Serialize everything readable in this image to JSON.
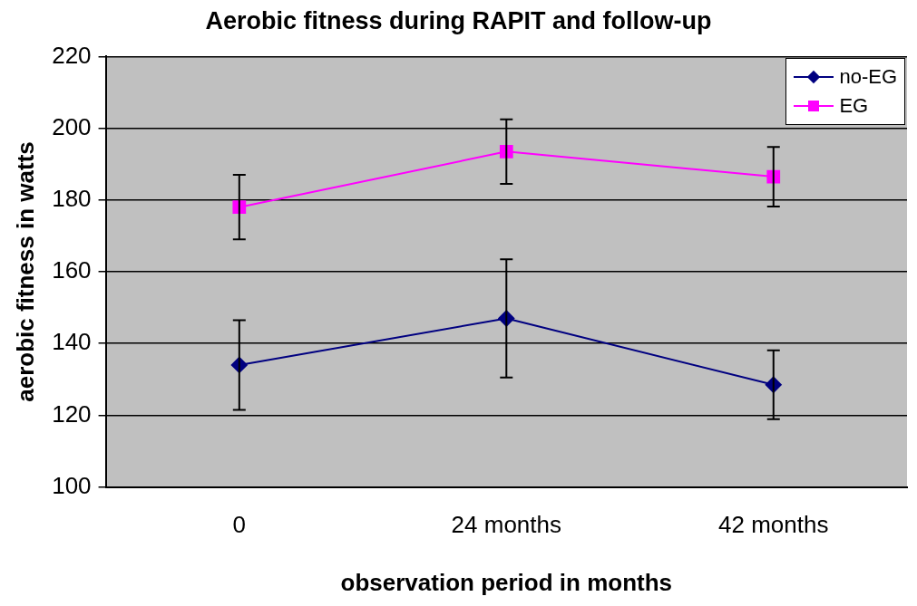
{
  "chart_data": {
    "type": "line",
    "title": "Aerobic fitness during RAPIT and follow-up",
    "xlabel": "observation period in months",
    "ylabel": "aerobic fitness in watts",
    "categories": [
      "0",
      "24 months",
      "42 months"
    ],
    "series": [
      {
        "name": "no-EG",
        "color": "#000080",
        "marker": "diamond",
        "values": [
          134,
          147,
          128.5
        ],
        "errors": [
          12.5,
          16.5,
          9.6
        ]
      },
      {
        "name": "EG",
        "color": "#ff00ff",
        "marker": "square",
        "values": [
          178,
          193.5,
          186.5
        ],
        "errors": [
          9,
          9,
          8.3
        ]
      }
    ],
    "ylim": [
      100,
      220
    ],
    "yticks": [
      100,
      120,
      140,
      160,
      180,
      200,
      220
    ],
    "grid": "y",
    "legend": "top right",
    "line_style": "solid"
  }
}
